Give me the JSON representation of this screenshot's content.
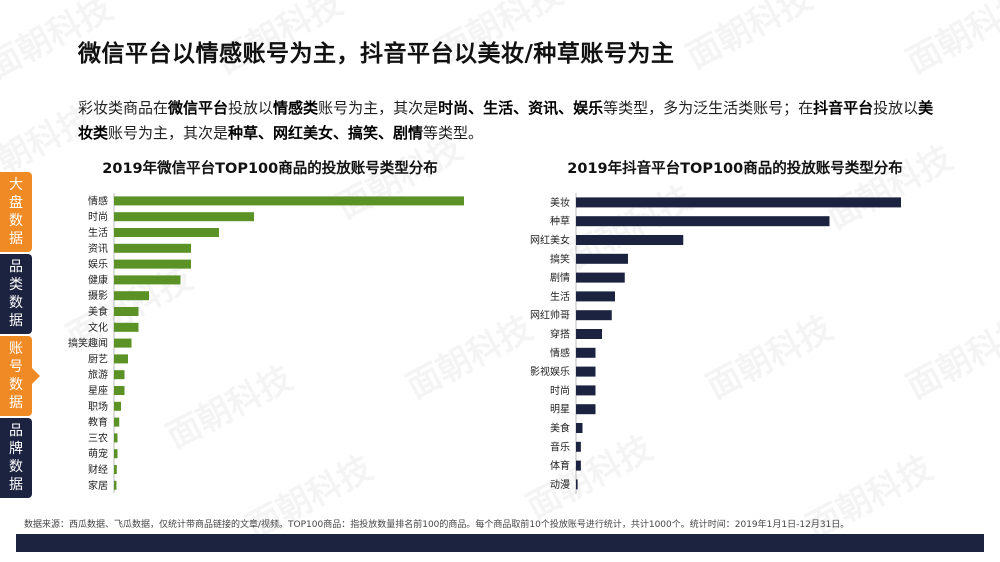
{
  "title": "微信平台以情感账号为主，抖音平台以美妆/种草账号为主",
  "description": [
    {
      "t": "彩妆类商品在",
      "b": false
    },
    {
      "t": "微信平台",
      "b": true
    },
    {
      "t": "投放以",
      "b": false
    },
    {
      "t": "情感类",
      "b": true
    },
    {
      "t": "账号为主，其次是",
      "b": false
    },
    {
      "t": "时尚、生活、资讯、娱乐",
      "b": true
    },
    {
      "t": "等类型，多为泛生活类账号；在",
      "b": false
    },
    {
      "t": "抖音平台",
      "b": true
    },
    {
      "t": "投放以",
      "b": false
    },
    {
      "t": "美妆类",
      "b": true
    },
    {
      "t": "账号为主，其次是",
      "b": false
    },
    {
      "t": "种草、网红美女、搞笑、剧情",
      "b": true
    },
    {
      "t": "等类型。",
      "b": false
    }
  ],
  "sidebar": {
    "items": [
      {
        "label": "大盘数据",
        "active": true
      },
      {
        "label": "品类数据",
        "active": false
      },
      {
        "label": "账号数据",
        "active": true
      },
      {
        "label": "品牌数据",
        "active": false
      }
    ]
  },
  "watermark": "面朝科技",
  "colors": {
    "green": "#5a9225",
    "navy": "#1c2340",
    "orange": "#f08a24"
  },
  "chart_data": [
    {
      "type": "bar",
      "orientation": "horizontal",
      "title": "2019年微信平台TOP100商品的投放账号类型分布",
      "color": "#5a9225",
      "categories": [
        "情感",
        "时尚",
        "生活",
        "资讯",
        "娱乐",
        "健康",
        "摄影",
        "美食",
        "文化",
        "搞笑趣闻",
        "厨艺",
        "旅游",
        "星座",
        "职场",
        "教育",
        "三农",
        "萌宠",
        "财经",
        "家居"
      ],
      "values": [
        100,
        40,
        30,
        22,
        22,
        19,
        10,
        7,
        7,
        5,
        4,
        3,
        3,
        2,
        1.5,
        1,
        1,
        0.8,
        0.7
      ],
      "xlim": [
        0,
        100
      ],
      "grid": false
    },
    {
      "type": "bar",
      "orientation": "horizontal",
      "title": "2019年抖音平台TOP100商品的投放账号类型分布",
      "color": "#1c2340",
      "categories": [
        "美妆",
        "种草",
        "网红美女",
        "搞笑",
        "剧情",
        "生活",
        "网红帅哥",
        "穿搭",
        "情感",
        "影视娱乐",
        "时尚",
        "明星",
        "美食",
        "音乐",
        "体育",
        "动漫"
      ],
      "values": [
        100,
        78,
        33,
        16,
        15,
        12,
        11,
        8,
        6,
        6,
        6,
        6,
        2,
        1.5,
        1.5,
        0.5
      ],
      "xlim": [
        0,
        100
      ],
      "grid": false
    }
  ],
  "source_note": "数据来源：西瓜数据、飞瓜数据，仅统计带商品链接的文章/视频。TOP100商品：指投放数量排名前100的商品。每个商品取前10个投放账号进行统计，共计1000个。统计时间：2019年1月1日-12月31日。"
}
